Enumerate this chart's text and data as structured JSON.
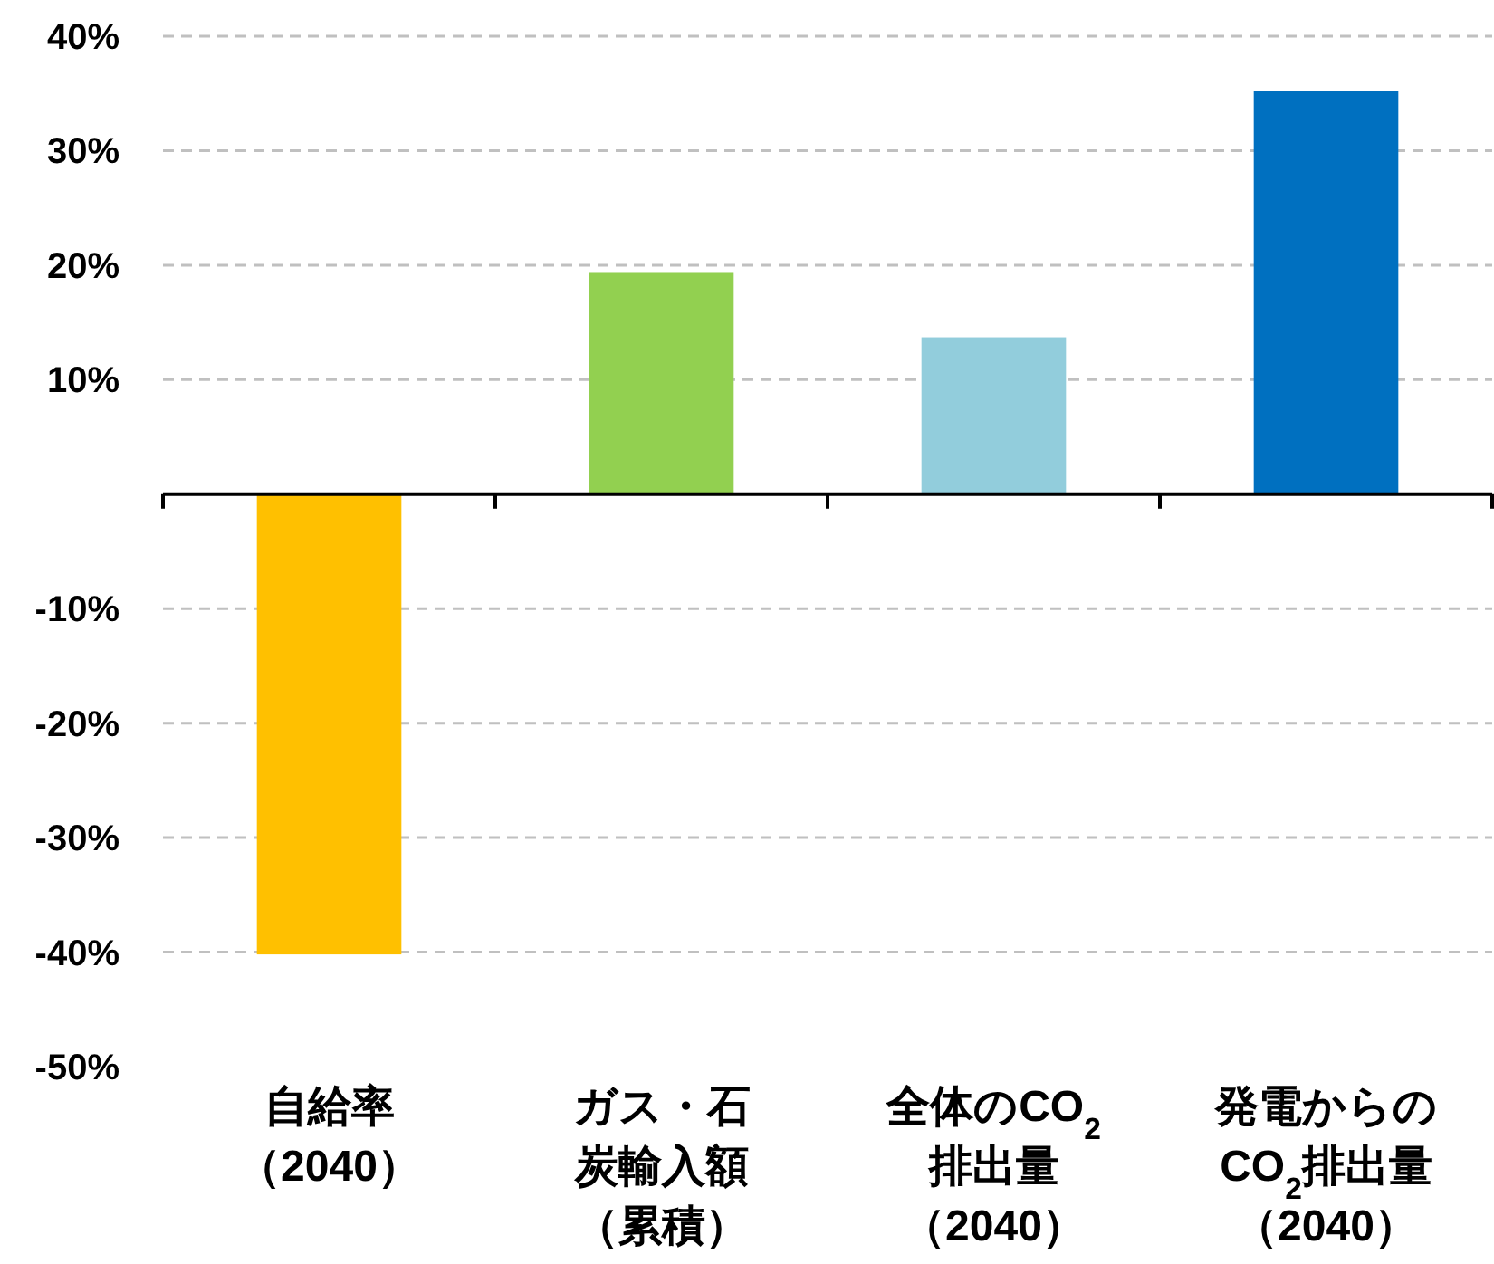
{
  "chart_data": {
    "type": "bar",
    "categories": [
      "自給率（2040）",
      "ガス・石炭輸入額（累積）",
      "全体のCO$_{2}$排出量（2040）",
      "発電からのCO$_{2}$排出量（2040）"
    ],
    "values": [
      -40.2,
      19.4,
      13.7,
      35.2
    ],
    "colors": [
      "#ffc000",
      "#92d050",
      "#92cddc",
      "#0070c0"
    ],
    "ylim": [
      -50,
      40
    ],
    "yticks": [
      {
        "value": 40,
        "label": "40%"
      },
      {
        "value": 30,
        "label": "30%"
      },
      {
        "value": 20,
        "label": "20%"
      },
      {
        "value": 10,
        "label": "10%"
      },
      {
        "value": 0,
        "label": null
      },
      {
        "value": -10,
        "label": "-10%"
      },
      {
        "value": -20,
        "label": "-20%"
      },
      {
        "value": -30,
        "label": "-30%"
      },
      {
        "value": -40,
        "label": "-40%"
      },
      {
        "value": -50,
        "label": "-50%"
      }
    ],
    "grid": "y"
  }
}
